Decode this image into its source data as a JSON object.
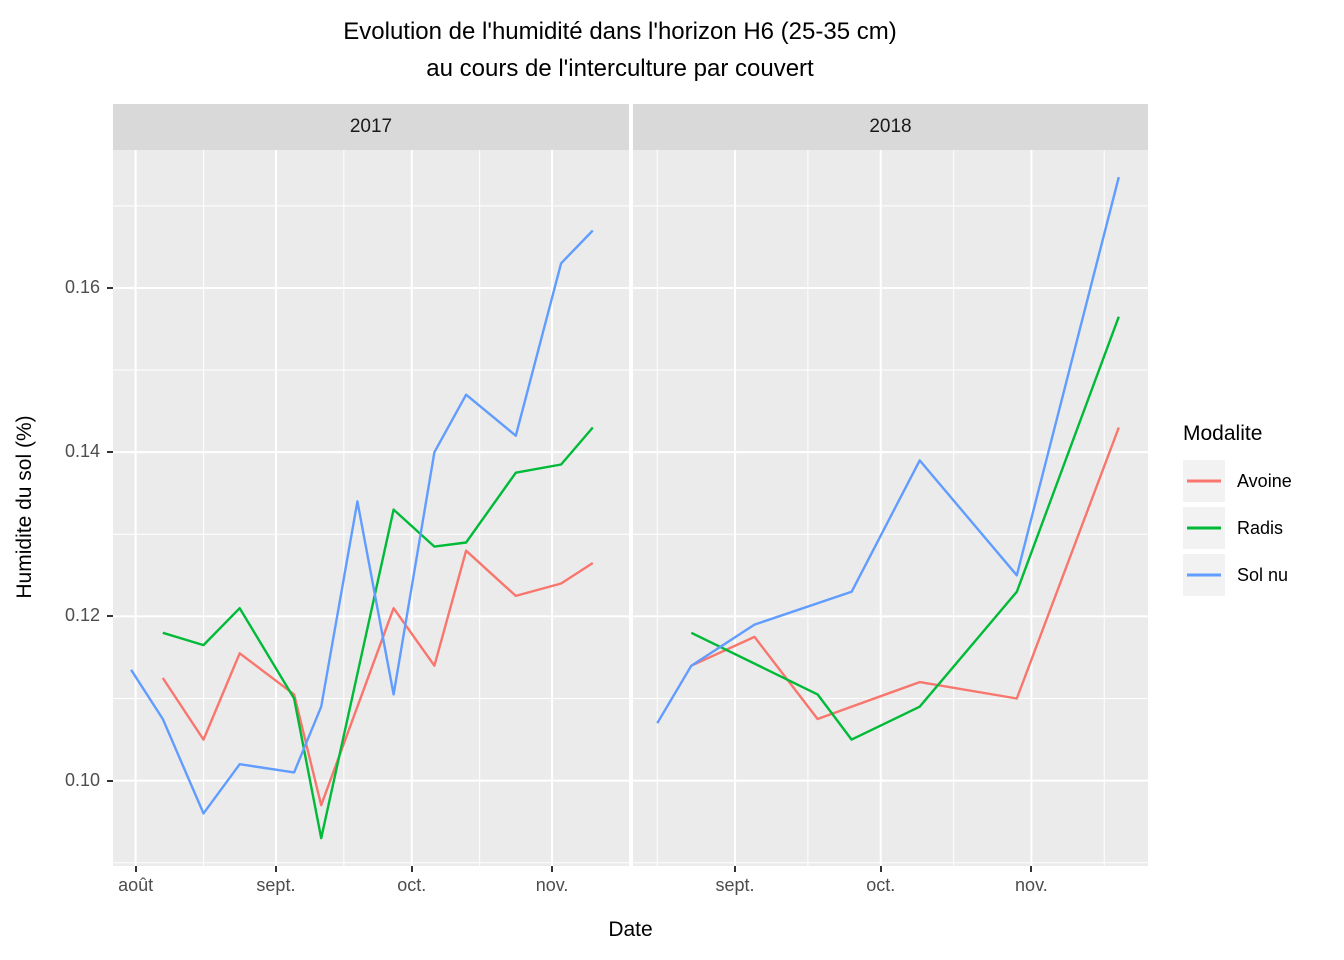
{
  "title": {
    "line1": "Evolution de l'humidité dans l'horizon H6 (25-35 cm)",
    "line2": "au cours de l'interculture par couvert"
  },
  "axes": {
    "x_title": "Date",
    "y_title": "Humidite du sol (%)"
  },
  "legend": {
    "title": "Modalite",
    "items": [
      {
        "label": "Avoine",
        "color": "#F8766D"
      },
      {
        "label": "Radis",
        "color": "#00BA38"
      },
      {
        "label": "Sol nu",
        "color": "#619CFF"
      }
    ]
  },
  "chart_data": {
    "type": "line",
    "title": "Evolution de l'humidité dans l'horizon H6 (25-35 cm) au cours de l'interculture par couvert",
    "xlabel": "Date",
    "ylabel": "Humidite du sol (%)",
    "ylim": [
      0.0896,
      0.1768
    ],
    "grid": true,
    "legend_position": "right",
    "panel_background": "#EBEBEB",
    "strip_background": "#D9D9D9",
    "gridline_color": "#FFFFFF",
    "y_axis": {
      "major_ticks": [
        0.1,
        0.12,
        0.14,
        0.16
      ],
      "tick_labels": [
        "0.10",
        "0.12",
        "0.14",
        "0.16"
      ],
      "minor_gridlines": [
        0.09,
        0.11,
        0.13,
        0.15,
        0.17
      ]
    },
    "facets": [
      {
        "label": "2017",
        "x_domain": [
          "2017-07-27",
          "2017-11-18"
        ],
        "x_ticks": [
          {
            "date": "2017-08-01",
            "label": "août"
          },
          {
            "date": "2017-09-01",
            "label": "sept."
          },
          {
            "date": "2017-10-01",
            "label": "oct."
          },
          {
            "date": "2017-11-01",
            "label": "nov."
          }
        ],
        "x_minor_gridlines": [
          "2017-08-16",
          "2017-09-16",
          "2017-10-16"
        ],
        "series": [
          {
            "name": "Avoine",
            "points": [
              [
                "2017-08-07",
                0.1125
              ],
              [
                "2017-08-16",
                0.105
              ],
              [
                "2017-08-24",
                0.1155
              ],
              [
                "2017-09-05",
                0.1105
              ],
              [
                "2017-09-11",
                0.097
              ],
              [
                "2017-09-27",
                0.121
              ],
              [
                "2017-10-06",
                0.114
              ],
              [
                "2017-10-13",
                0.128
              ],
              [
                "2017-10-24",
                0.1225
              ],
              [
                "2017-11-03",
                0.124
              ],
              [
                "2017-11-10",
                0.1265
              ]
            ]
          },
          {
            "name": "Radis",
            "points": [
              [
                "2017-08-07",
                0.118
              ],
              [
                "2017-08-16",
                0.1165
              ],
              [
                "2017-08-24",
                0.121
              ],
              [
                "2017-09-05",
                0.11
              ],
              [
                "2017-09-11",
                0.093
              ],
              [
                "2017-09-27",
                0.133
              ],
              [
                "2017-10-06",
                0.1285
              ],
              [
                "2017-10-13",
                0.129
              ],
              [
                "2017-10-24",
                0.1375
              ],
              [
                "2017-11-03",
                0.1385
              ],
              [
                "2017-11-10",
                0.143
              ]
            ]
          },
          {
            "name": "Sol nu",
            "points": [
              [
                "2017-07-31",
                0.1135
              ],
              [
                "2017-08-07",
                0.1075
              ],
              [
                "2017-08-16",
                0.096
              ],
              [
                "2017-08-24",
                0.102
              ],
              [
                "2017-09-05",
                0.101
              ],
              [
                "2017-09-11",
                0.109
              ],
              [
                "2017-09-19",
                0.134
              ],
              [
                "2017-09-27",
                0.1105
              ],
              [
                "2017-10-06",
                0.14
              ],
              [
                "2017-10-13",
                0.147
              ],
              [
                "2017-10-24",
                0.142
              ],
              [
                "2017-11-03",
                0.163
              ],
              [
                "2017-11-10",
                0.167
              ]
            ]
          }
        ]
      },
      {
        "label": "2018",
        "x_domain": [
          "2018-08-11",
          "2018-11-25"
        ],
        "x_ticks": [
          {
            "date": "2018-09-01",
            "label": "sept."
          },
          {
            "date": "2018-10-01",
            "label": "oct."
          },
          {
            "date": "2018-11-01",
            "label": "nov."
          }
        ],
        "x_minor_gridlines": [
          "2018-08-16",
          "2018-09-16",
          "2018-10-16",
          "2018-11-16"
        ],
        "series": [
          {
            "name": "Avoine",
            "points": [
              [
                "2018-08-23",
                0.114
              ],
              [
                "2018-09-05",
                0.1175
              ],
              [
                "2018-09-18",
                0.1075
              ],
              [
                "2018-10-09",
                0.112
              ],
              [
                "2018-10-29",
                0.11
              ],
              [
                "2018-11-19",
                0.143
              ]
            ]
          },
          {
            "name": "Radis",
            "points": [
              [
                "2018-08-23",
                0.118
              ],
              [
                "2018-09-18",
                0.1105
              ],
              [
                "2018-09-25",
                0.105
              ],
              [
                "2018-10-09",
                0.109
              ],
              [
                "2018-10-29",
                0.123
              ],
              [
                "2018-11-19",
                0.1565
              ]
            ]
          },
          {
            "name": "Sol nu",
            "points": [
              [
                "2018-08-16",
                0.107
              ],
              [
                "2018-08-23",
                0.114
              ],
              [
                "2018-09-05",
                0.119
              ],
              [
                "2018-09-25",
                0.123
              ],
              [
                "2018-10-09",
                0.139
              ],
              [
                "2018-10-29",
                0.125
              ],
              [
                "2018-11-19",
                0.1735
              ]
            ]
          }
        ]
      }
    ]
  }
}
